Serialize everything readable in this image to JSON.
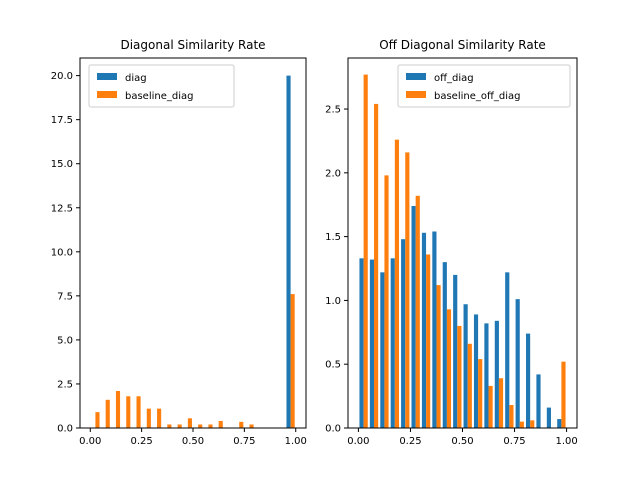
{
  "chart_data": [
    {
      "type": "bar",
      "title": "Diagonal Similarity Rate",
      "xlabel": "",
      "ylabel": "",
      "xlim": [
        -0.05,
        1.05
      ],
      "ylim": [
        0,
        21
      ],
      "xticks": [
        0.0,
        0.25,
        0.5,
        0.75,
        1.0
      ],
      "xtick_labels": [
        "0.00",
        "0.25",
        "0.50",
        "0.75",
        "1.00"
      ],
      "yticks": [
        0.0,
        2.5,
        5.0,
        7.5,
        10.0,
        12.5,
        15.0,
        17.5,
        20.0
      ],
      "ytick_labels": [
        "0.0",
        "2.5",
        "5.0",
        "7.5",
        "10.0",
        "12.5",
        "15.0",
        "17.5",
        "20.0"
      ],
      "bin_edges": [
        0.0,
        0.05,
        0.1,
        0.15,
        0.2,
        0.25,
        0.3,
        0.35,
        0.4,
        0.45,
        0.5,
        0.55,
        0.6,
        0.65,
        0.7,
        0.75,
        0.8,
        0.85,
        0.9,
        0.95,
        1.0
      ],
      "legend_position": "top-left",
      "series": [
        {
          "name": "diag",
          "color": "#1f77b4",
          "values": [
            0,
            0,
            0,
            0,
            0,
            0,
            0,
            0,
            0,
            0,
            0,
            0,
            0,
            0,
            0,
            0,
            0,
            0,
            0,
            20.0
          ]
        },
        {
          "name": "baseline_diag",
          "color": "#ff7f0e",
          "values": [
            0.9,
            1.6,
            2.1,
            1.8,
            1.8,
            1.1,
            1.1,
            0.2,
            0.2,
            0.55,
            0.2,
            0.2,
            0.4,
            0,
            0.35,
            0.2,
            0,
            0,
            0,
            7.6
          ]
        }
      ]
    },
    {
      "type": "bar",
      "title": "Off Diagonal Similarity Rate",
      "xlabel": "",
      "ylabel": "",
      "xlim": [
        -0.05,
        1.05
      ],
      "ylim": [
        0,
        2.9
      ],
      "xticks": [
        0.0,
        0.25,
        0.5,
        0.75,
        1.0
      ],
      "xtick_labels": [
        "0.00",
        "0.25",
        "0.50",
        "0.75",
        "1.00"
      ],
      "yticks": [
        0.0,
        0.5,
        1.0,
        1.5,
        2.0,
        2.5
      ],
      "ytick_labels": [
        "0.0",
        "0.5",
        "1.0",
        "1.5",
        "2.0",
        "2.5"
      ],
      "bin_edges": [
        0.0,
        0.05,
        0.1,
        0.15,
        0.2,
        0.25,
        0.3,
        0.35,
        0.4,
        0.45,
        0.5,
        0.55,
        0.6,
        0.65,
        0.7,
        0.75,
        0.8,
        0.85,
        0.9,
        0.95,
        1.0
      ],
      "legend_position": "top-right",
      "series": [
        {
          "name": "off_diag",
          "color": "#1f77b4",
          "values": [
            1.33,
            1.32,
            1.22,
            1.33,
            1.48,
            1.74,
            1.53,
            1.54,
            1.3,
            1.2,
            0.97,
            0.89,
            0.82,
            0.84,
            1.22,
            1.01,
            0.74,
            0.42,
            0.16,
            0.07
          ]
        },
        {
          "name": "baseline_off_diag",
          "color": "#ff7f0e",
          "values": [
            2.77,
            2.54,
            1.98,
            2.26,
            2.16,
            1.82,
            1.36,
            1.12,
            0.93,
            0.8,
            0.66,
            0.54,
            0.33,
            0.39,
            0.18,
            0.05,
            0.06,
            0,
            0,
            0.52
          ]
        }
      ]
    }
  ]
}
